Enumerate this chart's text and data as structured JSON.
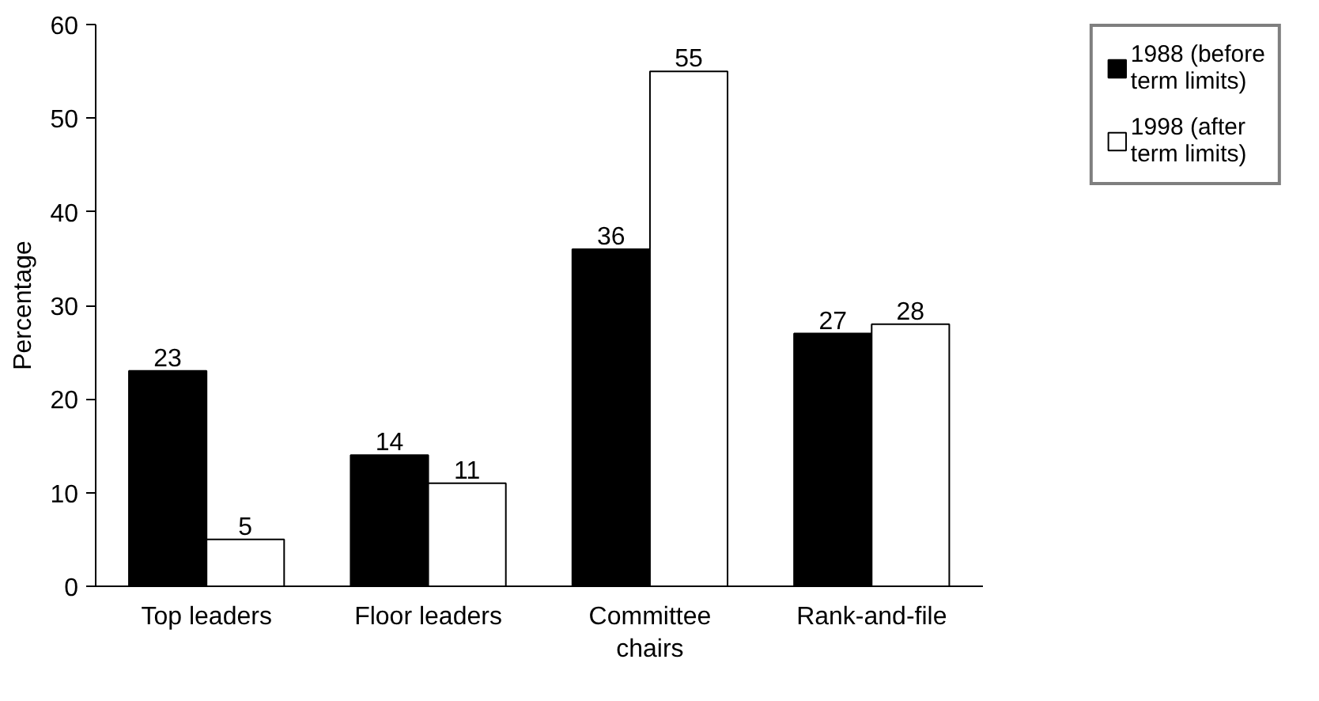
{
  "chart_data": {
    "type": "bar",
    "ylabel": "Percentage",
    "categories": [
      "Top leaders",
      "Floor leaders",
      "Committee\nchairs",
      "Rank-and-file"
    ],
    "series": [
      {
        "name": "1988 (before\nterm limits)",
        "color": "#000000",
        "values": [
          23,
          14,
          36,
          27
        ]
      },
      {
        "name": "1998 (after\nterm limits)",
        "color": "#ffffff",
        "values": [
          5,
          11,
          55,
          28
        ]
      }
    ],
    "ylim": [
      0,
      60
    ],
    "yticks": [
      0,
      10,
      20,
      30,
      40,
      50,
      60
    ],
    "grid": false,
    "legend": "right",
    "data_labels": true
  }
}
